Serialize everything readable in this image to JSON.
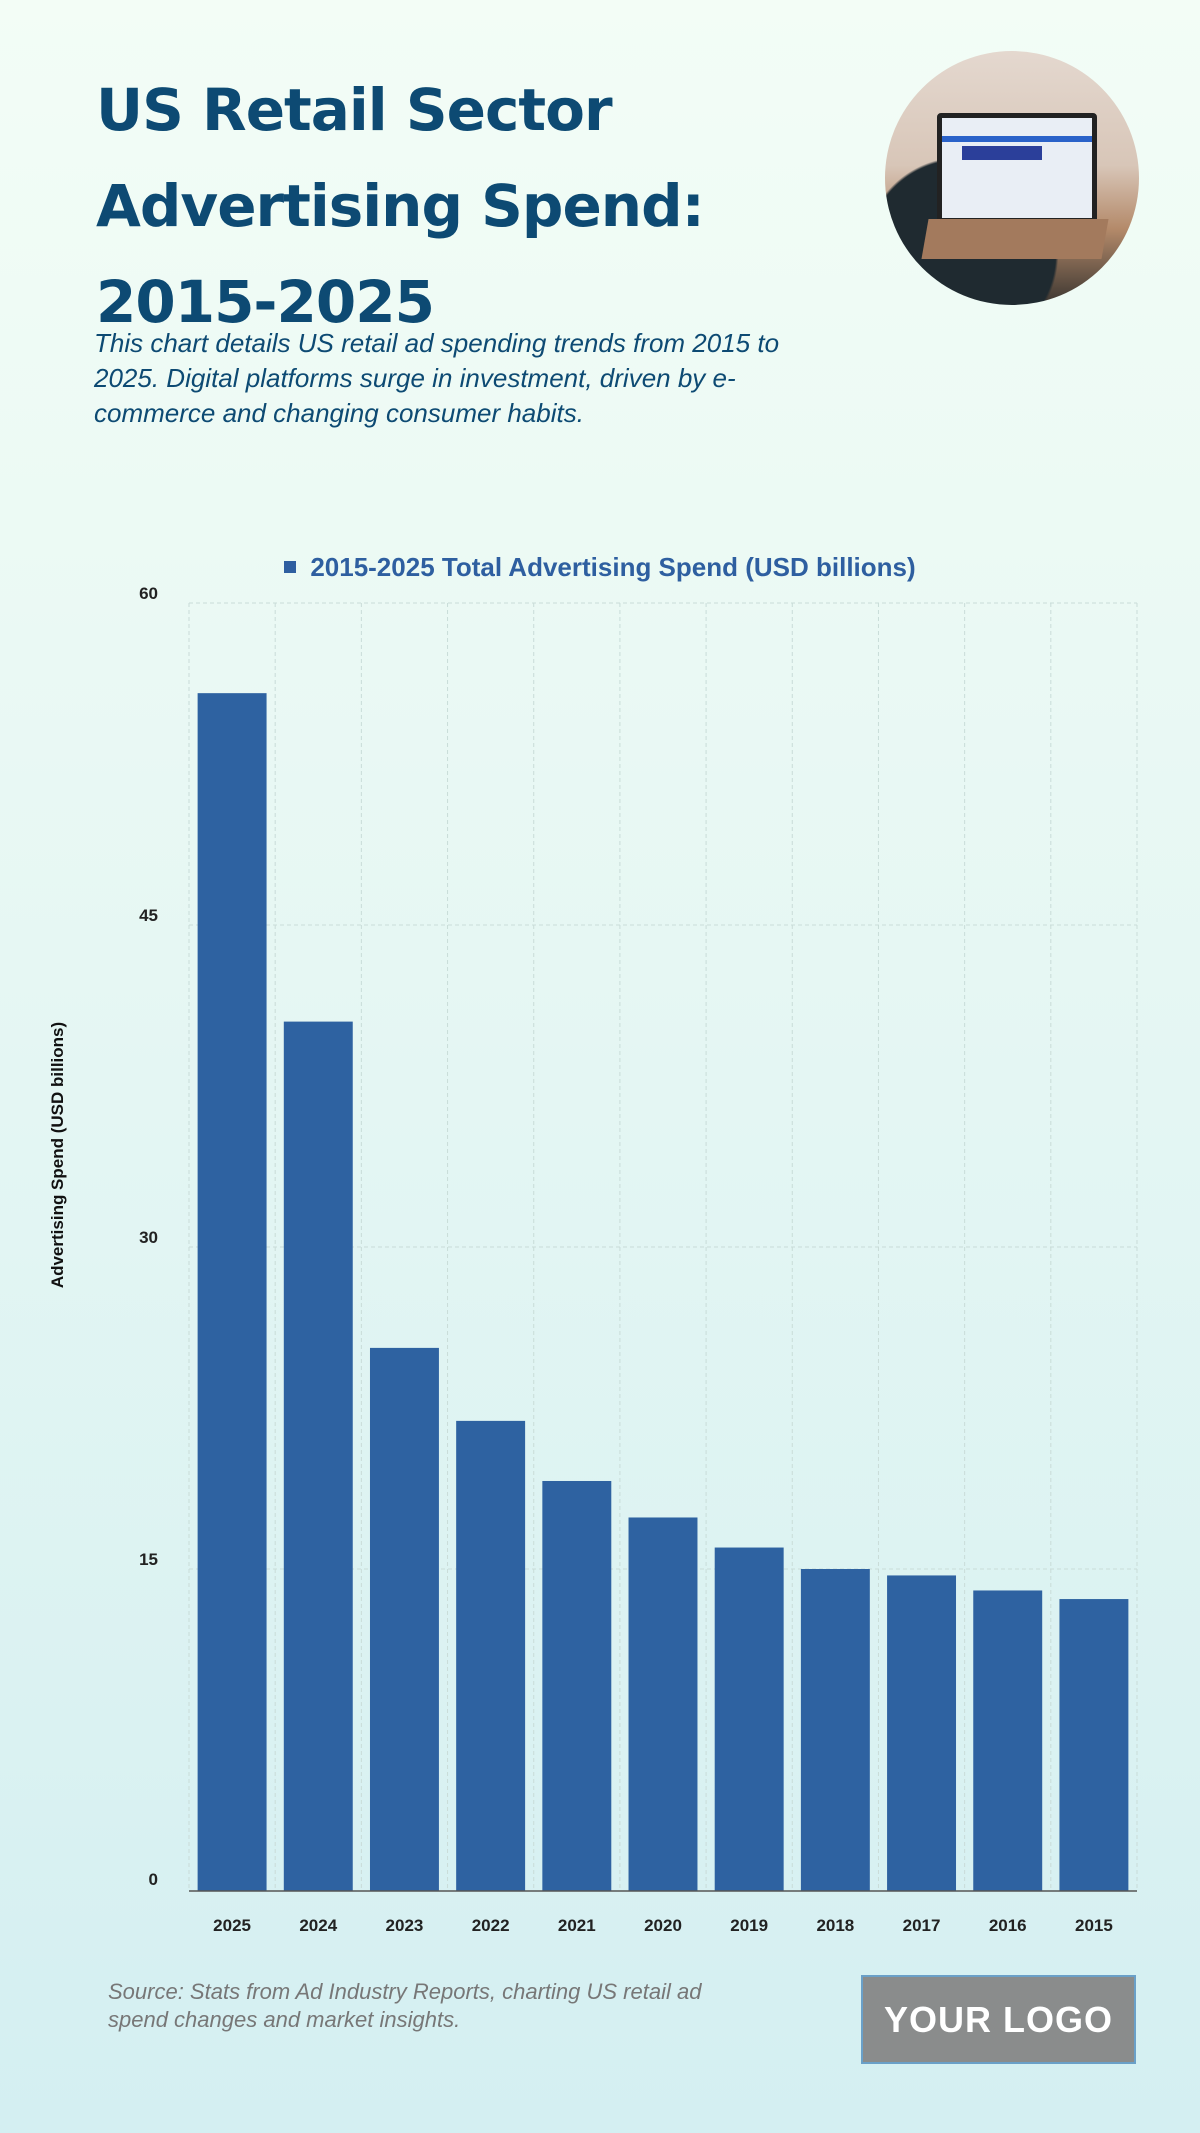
{
  "header": {
    "title": "US Retail Sector Advertising Spend: 2015-2025",
    "subtitle": "This chart details US retail ad spending trends from 2015 to 2025. Digital platforms surge in investment, driven by e-commerce and changing consumer habits."
  },
  "chart_data": {
    "type": "bar",
    "title": "",
    "legend": [
      "2015-2025 Total Advertising Spend (USD billions)"
    ],
    "legend_position": "top-center",
    "xlabel": "",
    "ylabel": "Advertising Spend (USD billions)",
    "categories": [
      "2025",
      "2024",
      "2023",
      "2022",
      "2021",
      "2020",
      "2019",
      "2018",
      "2017",
      "2016",
      "2015"
    ],
    "series": [
      {
        "name": "2015-2025 Total Advertising Spend (USD billions)",
        "values": [
          55.8,
          40.5,
          25.3,
          21.9,
          19.1,
          17.4,
          16.0,
          15.0,
          14.7,
          14.0,
          13.6
        ]
      }
    ],
    "ylim": [
      0,
      60
    ],
    "yticks": [
      0,
      15,
      30,
      45,
      60
    ],
    "grid": true,
    "bar_color": "#2e62a1"
  },
  "footer": {
    "source": "Source: Stats from Ad Industry Reports, charting US retail ad spend changes and market insights.",
    "logo": "YOUR LOGO"
  }
}
